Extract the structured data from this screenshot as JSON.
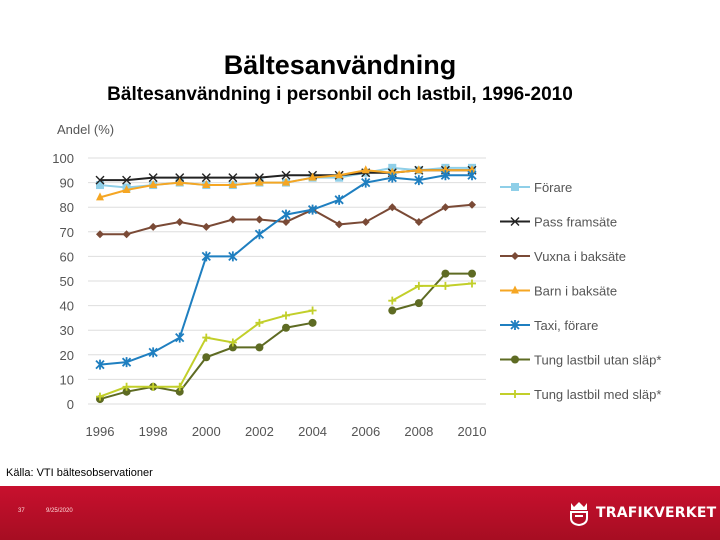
{
  "slide": {
    "title": "Bältesanvändning",
    "subtitle": "Bältesanvändning i personbil och lastbil, 1996-2010",
    "source": "Källa: VTI bältesobservationer",
    "slide_number": "37",
    "date": "9/25/2020",
    "brand": "TRAFIKVERKET",
    "brand_color": "#c8102e"
  },
  "chart_data": {
    "type": "line",
    "title": "",
    "ylabel": "Andel (%)",
    "xlabel": "",
    "ylim": [
      0,
      100
    ],
    "yticks": [
      0,
      10,
      20,
      30,
      40,
      50,
      60,
      70,
      80,
      90,
      100
    ],
    "xticks": [
      1996,
      1998,
      2000,
      2002,
      2004,
      2006,
      2008,
      2010
    ],
    "xlim": [
      1996,
      2010
    ],
    "grid": "horizontal",
    "legend_position": "right",
    "x": [
      1996,
      1997,
      1998,
      1999,
      2000,
      2001,
      2002,
      2003,
      2004,
      2005,
      2006,
      2007,
      2008,
      2009,
      2010
    ],
    "series": [
      {
        "name": "Förare",
        "color": "#8fcfe8",
        "marker": "square",
        "values": [
          89,
          88,
          89,
          90,
          89,
          89,
          90,
          90,
          92,
          92,
          94,
          96,
          95,
          96,
          96
        ]
      },
      {
        "name": "Pass framsäte",
        "color": "#222222",
        "marker": "x",
        "values": [
          91,
          91,
          92,
          92,
          92,
          92,
          92,
          93,
          93,
          93,
          94,
          94,
          95,
          95,
          95
        ]
      },
      {
        "name": "Vuxna i baksäte",
        "color": "#7a4a36",
        "marker": "diamond",
        "values": [
          69,
          69,
          72,
          74,
          72,
          75,
          75,
          74,
          79,
          73,
          74,
          80,
          74,
          80,
          81
        ]
      },
      {
        "name": "Barn i baksäte",
        "color": "#f5a623",
        "marker": "triangle",
        "values": [
          84,
          87,
          89,
          90,
          89,
          89,
          90,
          90,
          92,
          93,
          95,
          94,
          95,
          95,
          95
        ]
      },
      {
        "name": "Taxi, förare",
        "color": "#1f7fc0",
        "marker": "star",
        "values": [
          16,
          17,
          21,
          27,
          60,
          60,
          69,
          77,
          79,
          83,
          90,
          92,
          91,
          93,
          93
        ]
      },
      {
        "name": "Tung lastbil utan släp*",
        "color": "#5e6b23",
        "marker": "circle",
        "values": [
          2,
          5,
          7,
          5,
          19,
          23,
          23,
          31,
          33,
          null,
          null,
          38,
          41,
          53,
          53
        ]
      },
      {
        "name": "Tung lastbil med släp*",
        "color": "#c2cf2a",
        "marker": "plus",
        "values": [
          3,
          7,
          7,
          7,
          27,
          25,
          33,
          36,
          38,
          null,
          null,
          42,
          48,
          48,
          49
        ]
      }
    ]
  }
}
